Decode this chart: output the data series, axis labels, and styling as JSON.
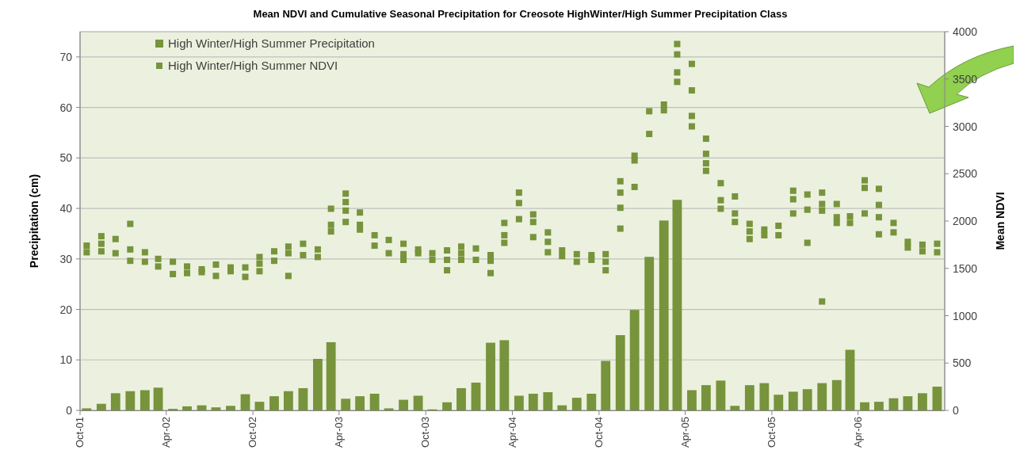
{
  "chart_data": {
    "type": "bar",
    "title": "Mean NDVI and Cumulative Seasonal Precipitation for Creosote HighWinter/High Summer Precipitation Class",
    "ylabel": "Precipitation (cm)",
    "y2label": "Mean NDVI",
    "xlim": [
      "2001-10",
      "2006-10"
    ],
    "xticks": [
      {
        "value": "2001-10",
        "label": "Oct-01"
      },
      {
        "value": "2002-04",
        "label": "Apr-02"
      },
      {
        "value": "2002-10",
        "label": "Oct-02"
      },
      {
        "value": "2003-04",
        "label": "Apr-03"
      },
      {
        "value": "2003-10",
        "label": "Oct-03"
      },
      {
        "value": "2004-04",
        "label": "Apr-04"
      },
      {
        "value": "2004-10",
        "label": "Oct-04"
      },
      {
        "value": "2005-04",
        "label": "Apr-05"
      },
      {
        "value": "2005-10",
        "label": "Oct-05"
      },
      {
        "value": "2006-04",
        "label": "Apr-06"
      }
    ],
    "ylim": [
      0,
      75
    ],
    "yticks": [
      0,
      10,
      20,
      30,
      40,
      50,
      60,
      70
    ],
    "y2lim": [
      0,
      4000
    ],
    "y2ticks": [
      0,
      500,
      1000,
      1500,
      2000,
      2500,
      3000,
      3500,
      4000
    ],
    "grid": "y",
    "legend": "top left",
    "marker": "square",
    "x": [
      "2001-10-15",
      "2001-11-15",
      "2001-12-15",
      "2002-01-15",
      "2002-02-15",
      "2002-03-15",
      "2002-04-15",
      "2002-05-15",
      "2002-06-15",
      "2002-07-15",
      "2002-08-15",
      "2002-09-15",
      "2002-10-15",
      "2002-11-15",
      "2002-12-15",
      "2003-01-15",
      "2003-02-15",
      "2003-03-15",
      "2003-04-15",
      "2003-05-15",
      "2003-06-15",
      "2003-07-15",
      "2003-08-15",
      "2003-09-15",
      "2003-10-15",
      "2003-11-15",
      "2003-12-15",
      "2004-01-15",
      "2004-02-15",
      "2004-03-15",
      "2004-04-15",
      "2004-05-15",
      "2004-06-15",
      "2004-07-15",
      "2004-08-15",
      "2004-09-15",
      "2004-10-15",
      "2004-11-15",
      "2004-12-15",
      "2005-01-15",
      "2005-02-15",
      "2005-03-15",
      "2005-04-15",
      "2005-05-15",
      "2005-06-15",
      "2005-07-15",
      "2005-08-15",
      "2005-09-15",
      "2005-10-15",
      "2005-11-15",
      "2005-12-15",
      "2006-01-15",
      "2006-02-15",
      "2006-03-15",
      "2006-04-15",
      "2006-05-15",
      "2006-06-15",
      "2006-07-15",
      "2006-08-15",
      "2006-09-15"
    ],
    "series": [
      {
        "name": "High Winter/High Summer Precipitation",
        "color": "#77933c",
        "values": [
          0.4,
          1.3,
          3.4,
          3.8,
          4.0,
          4.5,
          0.3,
          0.8,
          1.0,
          0.6,
          0.9,
          3.2,
          1.7,
          2.8,
          3.8,
          4.4,
          10.2,
          13.5,
          2.3,
          2.8,
          3.3,
          0.4,
          2.1,
          2.9,
          0.2,
          1.6,
          4.4,
          5.5,
          13.4,
          13.9,
          2.9,
          3.3,
          3.6,
          1.0,
          2.5,
          3.3,
          9.8,
          14.9,
          19.9,
          30.4,
          37.6,
          41.7,
          4.0,
          5.0,
          5.9,
          0.9,
          5.0,
          5.4,
          3.1,
          3.7,
          4.2,
          5.4,
          6.0,
          12.0,
          1.6,
          1.7,
          2.4,
          2.8,
          3.4,
          4.7
        ]
      },
      {
        "type": "scatter",
        "name": "High Winter/High Summer NDVI",
        "color": "#77933c",
        "axis": "y2",
        "x": [
          "2001-10-15",
          "2001-10-15",
          "2001-11-15",
          "2001-11-15",
          "2001-11-15",
          "2001-12-15",
          "2001-12-15",
          "2002-01-15",
          "2002-01-15",
          "2002-01-15",
          "2002-02-15",
          "2002-02-15",
          "2002-03-15",
          "2002-03-15",
          "2002-04-15",
          "2002-04-15",
          "2002-05-15",
          "2002-05-15",
          "2002-06-15",
          "2002-06-15",
          "2002-07-15",
          "2002-07-15",
          "2002-08-15",
          "2002-08-15",
          "2002-09-15",
          "2002-09-15",
          "2002-10-15",
          "2002-10-15",
          "2002-10-15",
          "2002-11-15",
          "2002-11-15",
          "2002-12-15",
          "2002-12-15",
          "2002-12-15",
          "2003-01-15",
          "2003-01-15",
          "2003-02-15",
          "2003-02-15",
          "2003-03-15",
          "2003-03-15",
          "2003-03-15",
          "2003-04-15",
          "2003-04-15",
          "2003-04-15",
          "2003-04-15",
          "2003-05-15",
          "2003-05-15",
          "2003-05-15",
          "2003-06-15",
          "2003-06-15",
          "2003-07-15",
          "2003-07-15",
          "2003-08-15",
          "2003-08-15",
          "2003-08-15",
          "2003-09-15",
          "2003-09-15",
          "2003-10-15",
          "2003-10-15",
          "2003-11-15",
          "2003-11-15",
          "2003-11-15",
          "2003-12-15",
          "2003-12-15",
          "2003-12-15",
          "2004-01-15",
          "2004-01-15",
          "2004-02-15",
          "2004-02-15",
          "2004-02-15",
          "2004-03-15",
          "2004-03-15",
          "2004-03-15",
          "2004-04-15",
          "2004-04-15",
          "2004-04-15",
          "2004-05-15",
          "2004-05-15",
          "2004-05-15",
          "2004-06-15",
          "2004-06-15",
          "2004-06-15",
          "2004-07-15",
          "2004-07-15",
          "2004-08-15",
          "2004-08-15",
          "2004-09-15",
          "2004-09-15",
          "2004-10-15",
          "2004-10-15",
          "2004-10-15",
          "2004-11-15",
          "2004-11-15",
          "2004-11-15",
          "2004-11-15",
          "2004-12-15",
          "2004-12-15",
          "2004-12-15",
          "2005-01-15",
          "2005-01-15",
          "2005-02-15",
          "2005-02-15",
          "2005-03-15",
          "2005-03-15",
          "2005-03-15",
          "2005-03-15",
          "2005-04-15",
          "2005-04-15",
          "2005-04-15",
          "2005-04-15",
          "2005-05-15",
          "2005-05-15",
          "2005-05-15",
          "2005-05-15",
          "2005-06-15",
          "2005-06-15",
          "2005-06-15",
          "2005-07-15",
          "2005-07-15",
          "2005-07-15",
          "2005-08-15",
          "2005-08-15",
          "2005-08-15",
          "2005-09-15",
          "2005-09-15",
          "2005-10-15",
          "2005-10-15",
          "2005-11-15",
          "2005-11-15",
          "2005-11-15",
          "2005-12-15",
          "2005-12-15",
          "2005-12-15",
          "2006-01-15",
          "2006-01-15",
          "2006-01-15",
          "2006-01-15",
          "2006-02-15",
          "2006-02-15",
          "2006-02-15",
          "2006-03-15",
          "2006-03-15",
          "2006-04-15",
          "2006-04-15",
          "2006-04-15",
          "2006-05-15",
          "2006-05-15",
          "2006-05-15",
          "2006-05-15",
          "2006-06-15",
          "2006-06-15",
          "2006-07-15",
          "2006-07-15",
          "2006-08-15",
          "2006-08-15",
          "2006-09-15",
          "2006-09-15"
        ],
        "values": [
          1740,
          1670,
          1840,
          1760,
          1680,
          1810,
          1660,
          1970,
          1700,
          1580,
          1670,
          1570,
          1600,
          1520,
          1570,
          1440,
          1520,
          1450,
          1490,
          1460,
          1540,
          1420,
          1510,
          1470,
          1510,
          1410,
          1620,
          1550,
          1470,
          1680,
          1580,
          1730,
          1660,
          1420,
          1760,
          1640,
          1700,
          1620,
          2130,
          1960,
          1890,
          2290,
          2200,
          2110,
          1990,
          2090,
          1960,
          1910,
          1850,
          1740,
          1800,
          1660,
          1760,
          1650,
          1590,
          1700,
          1660,
          1660,
          1590,
          1690,
          1590,
          1480,
          1730,
          1660,
          1590,
          1710,
          1590,
          1640,
          1580,
          1450,
          1980,
          1850,
          1770,
          2300,
          2190,
          2020,
          2070,
          1990,
          1830,
          1880,
          1780,
          1670,
          1690,
          1630,
          1650,
          1570,
          1640,
          1590,
          1650,
          1570,
          1480,
          2420,
          2300,
          2140,
          1920,
          2690,
          2640,
          2360,
          3160,
          2920,
          3230,
          3170,
          3870,
          3760,
          3570,
          3470,
          3660,
          3380,
          3110,
          3000,
          2870,
          2710,
          2610,
          2530,
          2400,
          2220,
          2130,
          2260,
          2080,
          1990,
          1970,
          1890,
          1810,
          1910,
          1850,
          1950,
          1850,
          2320,
          2230,
          2080,
          2280,
          2120,
          1770,
          2300,
          2180,
          2110,
          1150,
          2180,
          2040,
          1980,
          2050,
          1980,
          2430,
          2350,
          2080,
          2340,
          2170,
          2040,
          1860,
          1980,
          1880,
          1780,
          1720,
          1750,
          1680,
          1760,
          1670
        ]
      }
    ]
  }
}
